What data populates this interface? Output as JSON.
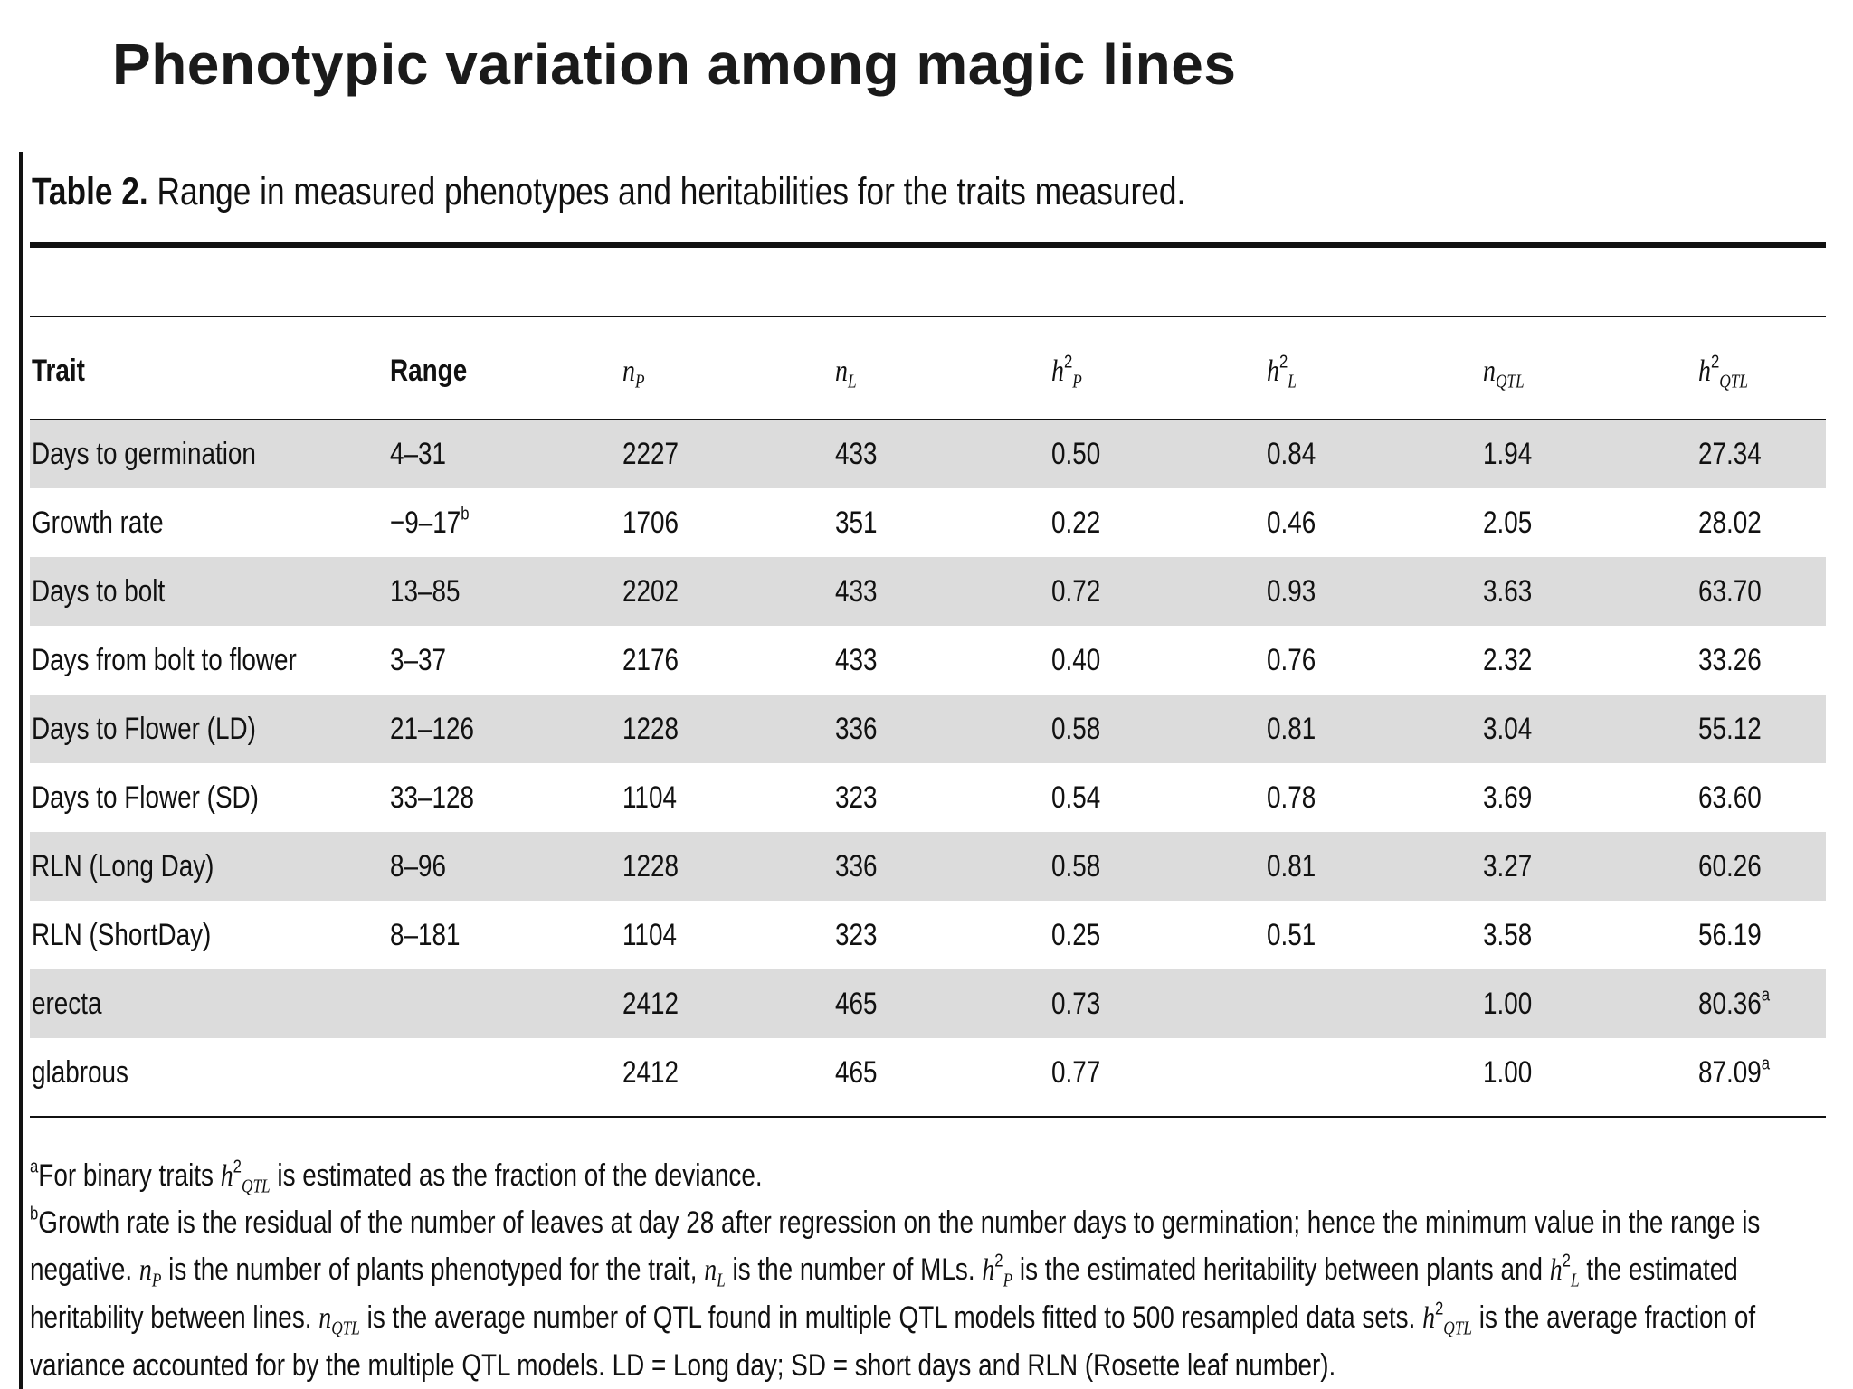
{
  "title": "Phenotypic variation among magic lines",
  "caption": [
    {
      "text": "Table 2.",
      "style": "bold"
    },
    {
      "text": " Range in measured phenotypes and heritabilities for the traits measured."
    }
  ],
  "table": {
    "header": [
      [
        {
          "text": "Trait",
          "style": "bold"
        }
      ],
      [
        {
          "text": "Range",
          "style": "bold"
        }
      ],
      [
        {
          "text": "n",
          "style": "math"
        },
        {
          "text": "P",
          "style": "math-sub"
        }
      ],
      [
        {
          "text": "n",
          "style": "math"
        },
        {
          "text": "L",
          "style": "math-sub"
        }
      ],
      [
        {
          "text": "h",
          "style": "math"
        },
        {
          "text": "2",
          "style": "sup"
        },
        {
          "text": "P",
          "style": "math-sub"
        }
      ],
      [
        {
          "text": "h",
          "style": "math"
        },
        {
          "text": "2",
          "style": "sup"
        },
        {
          "text": "L",
          "style": "math-sub"
        }
      ],
      [
        {
          "text": "n",
          "style": "math"
        },
        {
          "text": "QTL",
          "style": "math-sub"
        }
      ],
      [
        {
          "text": "h",
          "style": "math"
        },
        {
          "text": "2",
          "style": "sup"
        },
        {
          "text": "QTL",
          "style": "math-sub"
        }
      ]
    ],
    "rows": [
      [
        "Days to germination",
        "4–31",
        "2227",
        "433",
        "0.50",
        "0.84",
        "1.94",
        "27.34"
      ],
      [
        "Growth rate",
        [
          {
            "text": "−9–17"
          },
          {
            "text": "b",
            "style": "sup"
          }
        ],
        "1706",
        "351",
        "0.22",
        "0.46",
        "2.05",
        "28.02"
      ],
      [
        "Days to bolt",
        "13–85",
        "2202",
        "433",
        "0.72",
        "0.93",
        "3.63",
        "63.70"
      ],
      [
        "Days from bolt to flower",
        "3–37",
        "2176",
        "433",
        "0.40",
        "0.76",
        "2.32",
        "33.26"
      ],
      [
        "Days to Flower (LD)",
        "21–126",
        "1228",
        "336",
        "0.58",
        "0.81",
        "3.04",
        "55.12"
      ],
      [
        "Days to Flower (SD)",
        "33–128",
        "1104",
        "323",
        "0.54",
        "0.78",
        "3.69",
        "63.60"
      ],
      [
        "RLN (Long Day)",
        "8–96",
        "1228",
        "336",
        "0.58",
        "0.81",
        "3.27",
        "60.26"
      ],
      [
        "RLN (ShortDay)",
        "8–181",
        "1104",
        "323",
        "0.25",
        "0.51",
        "3.58",
        "56.19"
      ],
      [
        "erecta",
        null,
        "2412",
        "465",
        "0.73",
        null,
        "1.00",
        [
          {
            "text": "80.36"
          },
          {
            "text": "a",
            "style": "sup"
          }
        ]
      ],
      [
        "glabrous",
        null,
        "2412",
        "465",
        "0.77",
        null,
        "1.00",
        [
          {
            "text": "87.09"
          },
          {
            "text": "a",
            "style": "sup"
          }
        ]
      ]
    ]
  },
  "footnotes": [
    [
      {
        "text": "a",
        "style": "sup"
      },
      {
        "text": "For binary traits "
      },
      {
        "text": "h",
        "style": "math"
      },
      {
        "text": "2",
        "style": "sup"
      },
      {
        "text": "QTL",
        "style": "math-sub"
      },
      {
        "text": " is estimated as the fraction of the deviance."
      }
    ],
    [
      {
        "text": "b",
        "style": "sup"
      },
      {
        "text": "Growth rate is the residual of the number of leaves at day 28 after regression on the number days to germination; hence the minimum value in the range is negative. "
      },
      {
        "text": "n",
        "style": "math"
      },
      {
        "text": "P",
        "style": "math-sub"
      },
      {
        "text": " is the number of plants phenotyped for the trait, "
      },
      {
        "text": "n",
        "style": "math"
      },
      {
        "text": "L",
        "style": "math-sub"
      },
      {
        "text": " is the number of MLs. "
      },
      {
        "text": "h",
        "style": "math"
      },
      {
        "text": "2",
        "style": "sup"
      },
      {
        "text": "P",
        "style": "math-sub"
      },
      {
        "text": " is the estimated heritability between plants and "
      },
      {
        "text": "h",
        "style": "math"
      },
      {
        "text": "2",
        "style": "sup"
      },
      {
        "text": "L",
        "style": "math-sub"
      },
      {
        "text": " the estimated heritability between lines. "
      },
      {
        "text": "n",
        "style": "math"
      },
      {
        "text": "QTL",
        "style": "math-sub"
      },
      {
        "text": " is the average number of QTL found in multiple QTL models fitted to 500 resampled data sets. "
      },
      {
        "text": "h",
        "style": "math"
      },
      {
        "text": "2",
        "style": "sup"
      },
      {
        "text": "QTL",
        "style": "math-sub"
      },
      {
        "text": " is the average fraction of variance accounted for by the multiple QTL models. LD = Long day; SD = short days and RLN (Rosette leaf number)."
      }
    ]
  ]
}
